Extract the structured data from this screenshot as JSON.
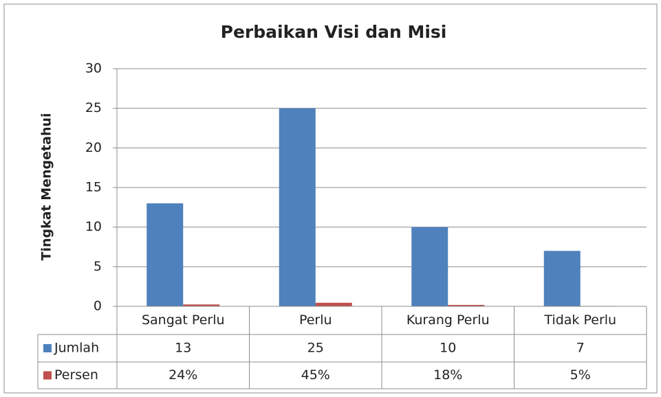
{
  "chart_data": {
    "type": "bar",
    "title": "Perbaikan Visi dan Misi",
    "ylabel": "Tingkat Mengetahui",
    "categories": [
      "Sangat Perlu",
      "Perlu",
      "Kurang Perlu",
      "Tidak Perlu"
    ],
    "series": [
      {
        "name": "Jumlah",
        "color": "#4f81bd",
        "values": [
          13,
          25,
          10,
          7
        ]
      },
      {
        "name": "Persen",
        "color": "#c0504d",
        "values": [
          0.24,
          0.45,
          0.18,
          0.05
        ],
        "value_labels": [
          "24%",
          "45%",
          "18%",
          "5%"
        ]
      }
    ],
    "ylim": [
      0,
      30
    ],
    "yticks": [
      0,
      5,
      10,
      15,
      20,
      25,
      30
    ],
    "grid": true,
    "data_table": true
  }
}
